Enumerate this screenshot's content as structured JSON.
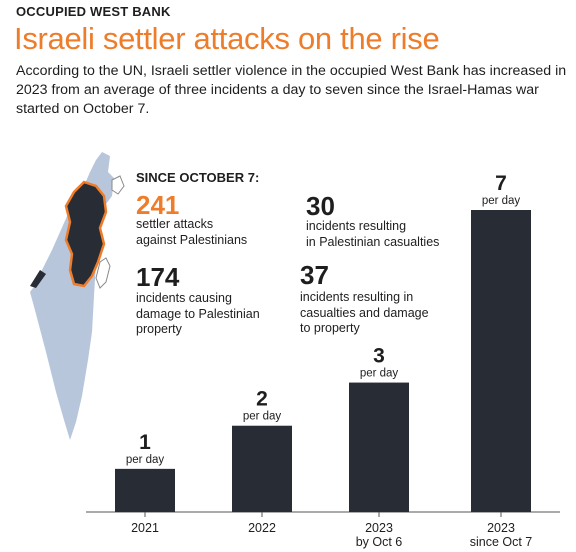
{
  "header": {
    "kicker": "OCCUPIED WEST BANK",
    "title": "Israeli settler attacks on the rise",
    "dek": "According to the UN, Israeli settler violence in the occupied West Bank has increased in 2023 from an average of three incidents a day to seven since the Israel-Hamas war started on October 7."
  },
  "stats": {
    "heading": "SINCE OCTOBER 7:",
    "items": [
      {
        "value": "241",
        "lines": [
          "settler attacks",
          "against Palestinians"
        ]
      },
      {
        "value": "174",
        "lines": [
          "incidents causing",
          "damage to Palestinian",
          "property"
        ]
      },
      {
        "value": "30",
        "lines": [
          "incidents resulting",
          "in Palestinian casualties"
        ]
      },
      {
        "value": "37",
        "lines": [
          "incidents resulting in",
          "casualties and damage",
          "to property"
        ]
      }
    ]
  },
  "colors": {
    "accent": "#ee7d2b",
    "bar": "#282c35",
    "map_land": "#b8c6dc",
    "map_west_bank": "#282c35"
  },
  "chart_data": {
    "type": "bar",
    "categories": [
      [
        "2021"
      ],
      [
        "2022"
      ],
      [
        "2023",
        "by Oct 6"
      ],
      [
        "2023",
        "since Oct 7"
      ]
    ],
    "values": [
      1,
      2,
      3,
      7
    ],
    "value_labels": [
      "1",
      "2",
      "3",
      "7"
    ],
    "unit_label": "per day",
    "title": "",
    "xlabel": "",
    "ylabel": "",
    "ylim": [
      0,
      7
    ],
    "grid": false,
    "legend": "none"
  }
}
